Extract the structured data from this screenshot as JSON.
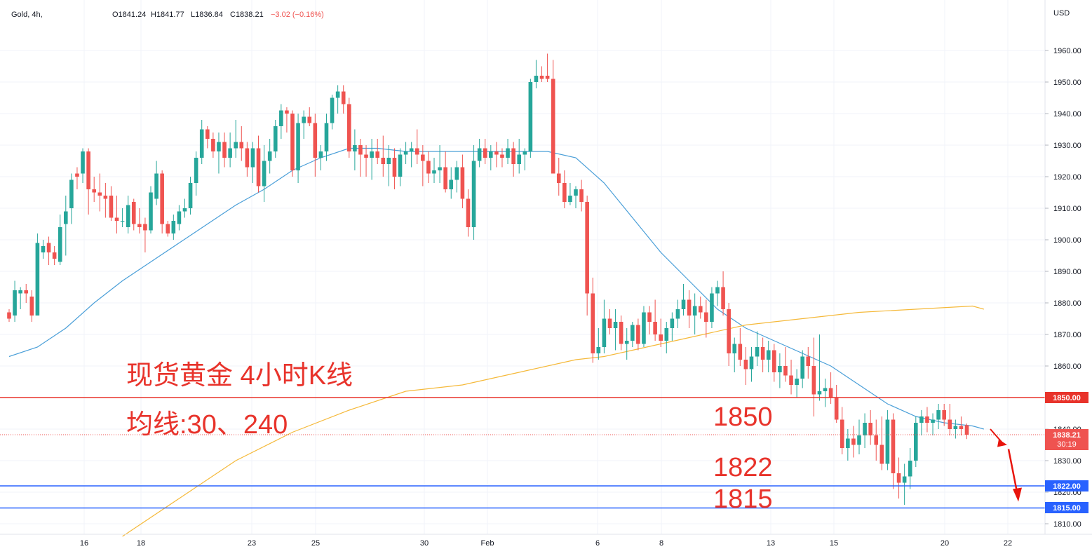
{
  "header": {
    "symbol": "Gold, 4h,",
    "o": "O1841.24",
    "h": "H1841.77",
    "l": "L1836.84",
    "c": "C1838.21",
    "change": "−3.02 (−0.16%)"
  },
  "currency": "USD",
  "annotations": {
    "title": "现货黄金 4小时K线",
    "ma_note": "均线:30、240",
    "level_1850": "1850",
    "level_1822": "1822",
    "level_1815": "1815"
  },
  "price_tags": {
    "line_1850": "1850.00",
    "current": "1838.21",
    "countdown": "30:19",
    "line_1822": "1822.00",
    "line_1815": "1815.00"
  },
  "colors": {
    "up": "#26a69a",
    "down": "#ef5350",
    "ma30": "#4a9fd8",
    "ma240": "#f5b93a",
    "resistance": "#e8332b",
    "support": "#2962ff",
    "arrow": "#e8140c"
  },
  "chart_data": {
    "type": "candlestick",
    "timeframe": "4h",
    "x_ticks": [
      "16",
      "18",
      "23",
      "25",
      "30",
      "Feb",
      "6",
      "8",
      "13",
      "15",
      "20",
      "22"
    ],
    "y_ticks": [
      1810,
      1820,
      1830,
      1840,
      1850,
      1860,
      1870,
      1880,
      1890,
      1900,
      1910,
      1920,
      1930,
      1940,
      1950,
      1960
    ],
    "ylim": [
      1806,
      1972
    ],
    "horizontal_levels": [
      {
        "label": "1850.00",
        "value": 1850,
        "color": "red"
      },
      {
        "label": "1822.00",
        "value": 1822,
        "color": "blue"
      },
      {
        "label": "1815.00",
        "value": 1815,
        "color": "blue"
      }
    ],
    "last_price": 1838.21,
    "candles": [
      [
        1877,
        1878,
        1874,
        1875
      ],
      [
        1876,
        1887,
        1874,
        1884
      ],
      [
        1883,
        1885,
        1878,
        1884
      ],
      [
        1884,
        1886,
        1880,
        1883
      ],
      [
        1882,
        1884,
        1874,
        1876
      ],
      [
        1876,
        1902,
        1876,
        1899
      ],
      [
        1896,
        1900,
        1894,
        1898
      ],
      [
        1899,
        1901,
        1892,
        1896
      ],
      [
        1896,
        1898,
        1892,
        1894
      ],
      [
        1893,
        1908,
        1892,
        1904
      ],
      [
        1905,
        1914,
        1895,
        1909
      ],
      [
        1910,
        1921,
        1905,
        1919
      ],
      [
        1921,
        1923,
        1916,
        1920
      ],
      [
        1921,
        1929,
        1918,
        1928
      ],
      [
        1928,
        1929,
        1908,
        1916
      ],
      [
        1916,
        1920,
        1912,
        1915
      ],
      [
        1915,
        1921,
        1909,
        1914
      ],
      [
        1914,
        1918,
        1907,
        1913
      ],
      [
        1914,
        1917,
        1906,
        1907
      ],
      [
        1907,
        1914,
        1902,
        1906
      ],
      [
        1906,
        1910,
        1904,
        1906
      ],
      [
        1904,
        1914,
        1902,
        1911
      ],
      [
        1912,
        1913,
        1903,
        1905
      ],
      [
        1905,
        1910,
        1902,
        1904
      ],
      [
        1905,
        1907,
        1896,
        1903
      ],
      [
        1903,
        1917,
        1902,
        1915
      ],
      [
        1913,
        1925,
        1911,
        1921
      ],
      [
        1921,
        1922,
        1902,
        1905
      ],
      [
        1905,
        1906,
        1901,
        1902
      ],
      [
        1902,
        1908,
        1900,
        1906
      ],
      [
        1905,
        1911,
        1903,
        1909
      ],
      [
        1909,
        1913,
        1907,
        1910
      ],
      [
        1910,
        1920,
        1908,
        1918
      ],
      [
        1918,
        1928,
        1914,
        1926
      ],
      [
        1926,
        1938,
        1924,
        1935
      ],
      [
        1935,
        1936,
        1929,
        1932
      ],
      [
        1932,
        1934,
        1926,
        1928
      ],
      [
        1928,
        1934,
        1921,
        1931
      ],
      [
        1931,
        1934,
        1923,
        1926
      ],
      [
        1926,
        1934,
        1923,
        1929
      ],
      [
        1929,
        1938,
        1926,
        1931
      ],
      [
        1931,
        1936,
        1925,
        1929
      ],
      [
        1929,
        1931,
        1920,
        1923
      ],
      [
        1923,
        1931,
        1918,
        1929
      ],
      [
        1929,
        1933,
        1915,
        1917
      ],
      [
        1917,
        1930,
        1912,
        1925
      ],
      [
        1925,
        1932,
        1921,
        1928
      ],
      [
        1928,
        1938,
        1926,
        1936
      ],
      [
        1936,
        1943,
        1932,
        1941
      ],
      [
        1941,
        1942,
        1934,
        1940
      ],
      [
        1940,
        1941,
        1920,
        1922
      ],
      [
        1922,
        1940,
        1918,
        1937
      ],
      [
        1937,
        1941,
        1932,
        1939
      ],
      [
        1939,
        1942,
        1936,
        1937
      ],
      [
        1937,
        1940,
        1920,
        1926
      ],
      [
        1926,
        1930,
        1922,
        1928
      ],
      [
        1928,
        1940,
        1925,
        1937
      ],
      [
        1937,
        1946,
        1935,
        1945
      ],
      [
        1945,
        1949,
        1940,
        1947
      ],
      [
        1947,
        1949,
        1940,
        1943
      ],
      [
        1943,
        1945,
        1926,
        1928
      ],
      [
        1928,
        1935,
        1922,
        1930
      ],
      [
        1930,
        1932,
        1920,
        1927
      ],
      [
        1927,
        1930,
        1920,
        1926
      ],
      [
        1926,
        1932,
        1919,
        1928
      ],
      [
        1928,
        1932,
        1924,
        1926
      ],
      [
        1926,
        1933,
        1920,
        1924
      ],
      [
        1924,
        1930,
        1917,
        1926
      ],
      [
        1926,
        1929,
        1916,
        1920
      ],
      [
        1920,
        1929,
        1917,
        1927
      ],
      [
        1927,
        1931,
        1924,
        1928
      ],
      [
        1928,
        1931,
        1923,
        1929
      ],
      [
        1929,
        1935,
        1924,
        1927
      ],
      [
        1927,
        1930,
        1917,
        1925
      ],
      [
        1925,
        1928,
        1918,
        1921
      ],
      [
        1921,
        1926,
        1918,
        1922
      ],
      [
        1922,
        1930,
        1918,
        1923
      ],
      [
        1923,
        1928,
        1915,
        1916
      ],
      [
        1916,
        1923,
        1913,
        1919
      ],
      [
        1919,
        1925,
        1915,
        1923
      ],
      [
        1923,
        1927,
        1910,
        1913
      ],
      [
        1913,
        1916,
        1901,
        1904
      ],
      [
        1904,
        1930,
        1900,
        1925
      ],
      [
        1925,
        1932,
        1923,
        1929
      ],
      [
        1929,
        1932,
        1924,
        1926
      ],
      [
        1926,
        1930,
        1922,
        1928
      ],
      [
        1928,
        1931,
        1923,
        1927
      ],
      [
        1927,
        1929,
        1923,
        1926
      ],
      [
        1926,
        1932,
        1924,
        1929
      ],
      [
        1929,
        1931,
        1920,
        1924
      ],
      [
        1924,
        1932,
        1921,
        1927
      ],
      [
        1927,
        1929,
        1922,
        1928
      ],
      [
        1928,
        1951,
        1926,
        1950
      ],
      [
        1950,
        1957,
        1948,
        1952
      ],
      [
        1952,
        1955,
        1950,
        1951
      ],
      [
        1952,
        1959,
        1950,
        1951
      ],
      [
        1951,
        1957,
        1922,
        1921
      ],
      [
        1921,
        1926,
        1914,
        1918
      ],
      [
        1918,
        1922,
        1910,
        1912
      ],
      [
        1912,
        1918,
        1911,
        1914
      ],
      [
        1914,
        1917,
        1910,
        1916
      ],
      [
        1916,
        1919,
        1909,
        1912
      ],
      [
        1912,
        1914,
        1876,
        1883
      ],
      [
        1883,
        1888,
        1861,
        1864
      ],
      [
        1864,
        1872,
        1862,
        1866
      ],
      [
        1866,
        1881,
        1864,
        1875
      ],
      [
        1875,
        1878,
        1870,
        1872
      ],
      [
        1872,
        1878,
        1865,
        1874
      ],
      [
        1874,
        1876,
        1865,
        1867
      ],
      [
        1867,
        1872,
        1862,
        1868
      ],
      [
        1868,
        1874,
        1866,
        1873
      ],
      [
        1873,
        1875,
        1865,
        1867
      ],
      [
        1867,
        1879,
        1866,
        1877
      ],
      [
        1877,
        1879,
        1870,
        1874
      ],
      [
        1874,
        1881,
        1868,
        1870
      ],
      [
        1870,
        1875,
        1866,
        1868
      ],
      [
        1868,
        1874,
        1864,
        1872
      ],
      [
        1872,
        1877,
        1868,
        1875
      ],
      [
        1875,
        1881,
        1872,
        1878
      ],
      [
        1878,
        1886,
        1876,
        1881
      ],
      [
        1881,
        1884,
        1872,
        1876
      ],
      [
        1876,
        1883,
        1870,
        1879
      ],
      [
        1879,
        1882,
        1875,
        1877
      ],
      [
        1877,
        1881,
        1869,
        1874
      ],
      [
        1874,
        1885,
        1872,
        1883
      ],
      [
        1883,
        1887,
        1879,
        1885
      ],
      [
        1885,
        1890,
        1876,
        1878
      ],
      [
        1878,
        1880,
        1860,
        1864
      ],
      [
        1864,
        1869,
        1858,
        1867
      ],
      [
        1867,
        1872,
        1860,
        1862
      ],
      [
        1862,
        1866,
        1854,
        1859
      ],
      [
        1859,
        1866,
        1855,
        1863
      ],
      [
        1863,
        1871,
        1860,
        1866
      ],
      [
        1866,
        1869,
        1858,
        1862
      ],
      [
        1862,
        1868,
        1858,
        1865
      ],
      [
        1865,
        1867,
        1855,
        1858
      ],
      [
        1858,
        1864,
        1853,
        1860
      ],
      [
        1860,
        1866,
        1855,
        1857
      ],
      [
        1857,
        1862,
        1851,
        1854
      ],
      [
        1854,
        1859,
        1850,
        1856
      ],
      [
        1856,
        1865,
        1853,
        1863
      ],
      [
        1863,
        1866,
        1856,
        1860
      ],
      [
        1860,
        1869,
        1844,
        1851
      ],
      [
        1851,
        1870,
        1849,
        1852
      ],
      [
        1852,
        1856,
        1847,
        1853
      ],
      [
        1853,
        1858,
        1848,
        1850
      ],
      [
        1850,
        1854,
        1842,
        1843
      ],
      [
        1843,
        1847,
        1832,
        1834
      ],
      [
        1834,
        1840,
        1830,
        1837
      ],
      [
        1837,
        1841,
        1831,
        1835
      ],
      [
        1835,
        1843,
        1832,
        1838
      ],
      [
        1838,
        1845,
        1834,
        1842
      ],
      [
        1842,
        1846,
        1835,
        1838
      ],
      [
        1838,
        1843,
        1830,
        1835
      ],
      [
        1835,
        1844,
        1827,
        1829
      ],
      [
        1829,
        1846,
        1827,
        1843
      ],
      [
        1843,
        1845,
        1821,
        1826
      ],
      [
        1826,
        1831,
        1818,
        1823
      ],
      [
        1823,
        1829,
        1816,
        1825
      ],
      [
        1825,
        1834,
        1821,
        1830
      ],
      [
        1830,
        1844,
        1828,
        1842
      ],
      [
        1842,
        1846,
        1838,
        1844
      ],
      [
        1844,
        1847,
        1839,
        1842
      ],
      [
        1842,
        1845,
        1838,
        1843
      ],
      [
        1843,
        1848,
        1840,
        1846
      ],
      [
        1846,
        1848,
        1841,
        1843
      ],
      [
        1843,
        1848,
        1838,
        1840
      ],
      [
        1840,
        1843,
        1837,
        1841
      ],
      [
        1841,
        1844,
        1838,
        1840
      ],
      [
        1841.24,
        1841.77,
        1836.84,
        1838.21
      ]
    ],
    "series": [
      {
        "name": "30",
        "type": "ma",
        "x_index": [
          0,
          5,
          10,
          15,
          20,
          25,
          30,
          35,
          40,
          45,
          50,
          55,
          60,
          65,
          70,
          75,
          80,
          85,
          90,
          95,
          100,
          105,
          110,
          115,
          120,
          125,
          130,
          135,
          140,
          145,
          150,
          155,
          160,
          165,
          170,
          172
        ],
        "values": [
          1863,
          1866,
          1872,
          1880,
          1887,
          1893,
          1899,
          1905,
          1911,
          1916,
          1922,
          1926,
          1929,
          1929,
          1928,
          1928,
          1928,
          1928,
          1928,
          1928,
          1926,
          1918,
          1907,
          1896,
          1887,
          1878,
          1872,
          1868,
          1864,
          1860,
          1854,
          1848,
          1844,
          1842,
          1841,
          1840
        ]
      },
      {
        "name": "240",
        "type": "ma",
        "x_index": [
          20,
          30,
          40,
          50,
          60,
          70,
          80,
          90,
          100,
          105,
          110,
          120,
          130,
          140,
          150,
          160,
          170,
          172
        ],
        "values": [
          1806,
          1818,
          1830,
          1839,
          1846,
          1852,
          1854,
          1858,
          1862,
          1863,
          1865,
          1869,
          1873,
          1875,
          1877,
          1878,
          1879,
          1878
        ]
      }
    ],
    "projection_arrow": {
      "from": 1840,
      "to": 1817
    }
  }
}
